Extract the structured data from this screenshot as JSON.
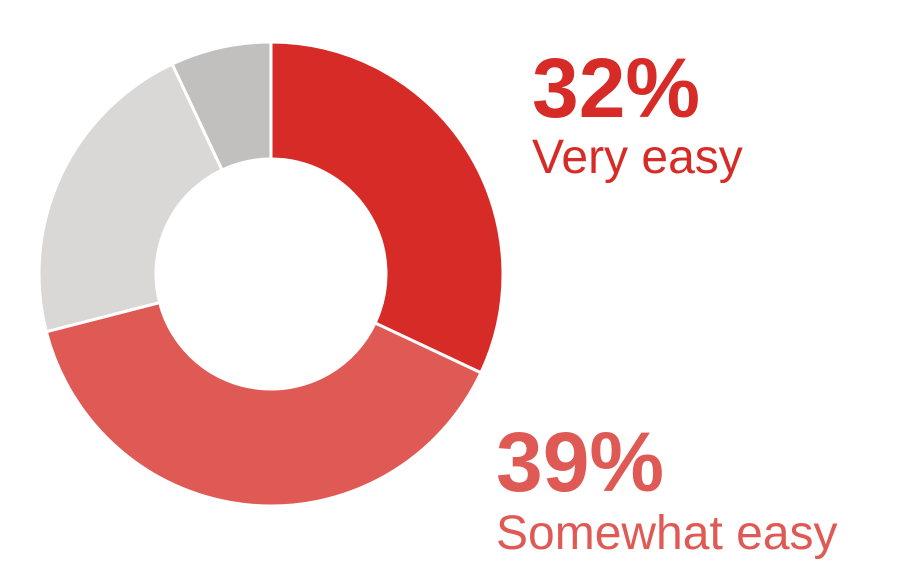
{
  "chart_data": {
    "type": "pie",
    "donut": true,
    "slices": [
      {
        "label": "Very easy",
        "value": 32,
        "value_label": "32%",
        "color": "#d72b27",
        "callout": true
      },
      {
        "label": "Somewhat easy",
        "value": 39,
        "value_label": "39%",
        "color": "#e05a55",
        "callout": true
      },
      {
        "label": "",
        "value": 22,
        "color": "#d9d8d7",
        "callout": false
      },
      {
        "label": "",
        "value": 7,
        "color": "#c1c0be",
        "callout": false
      }
    ],
    "legend": "none"
  },
  "callouts": [
    {
      "percent": "32%",
      "label": "Very easy",
      "color": "#d72b27"
    },
    {
      "percent": "39%",
      "label": "Somewhat easy",
      "color": "#e05a55"
    }
  ]
}
